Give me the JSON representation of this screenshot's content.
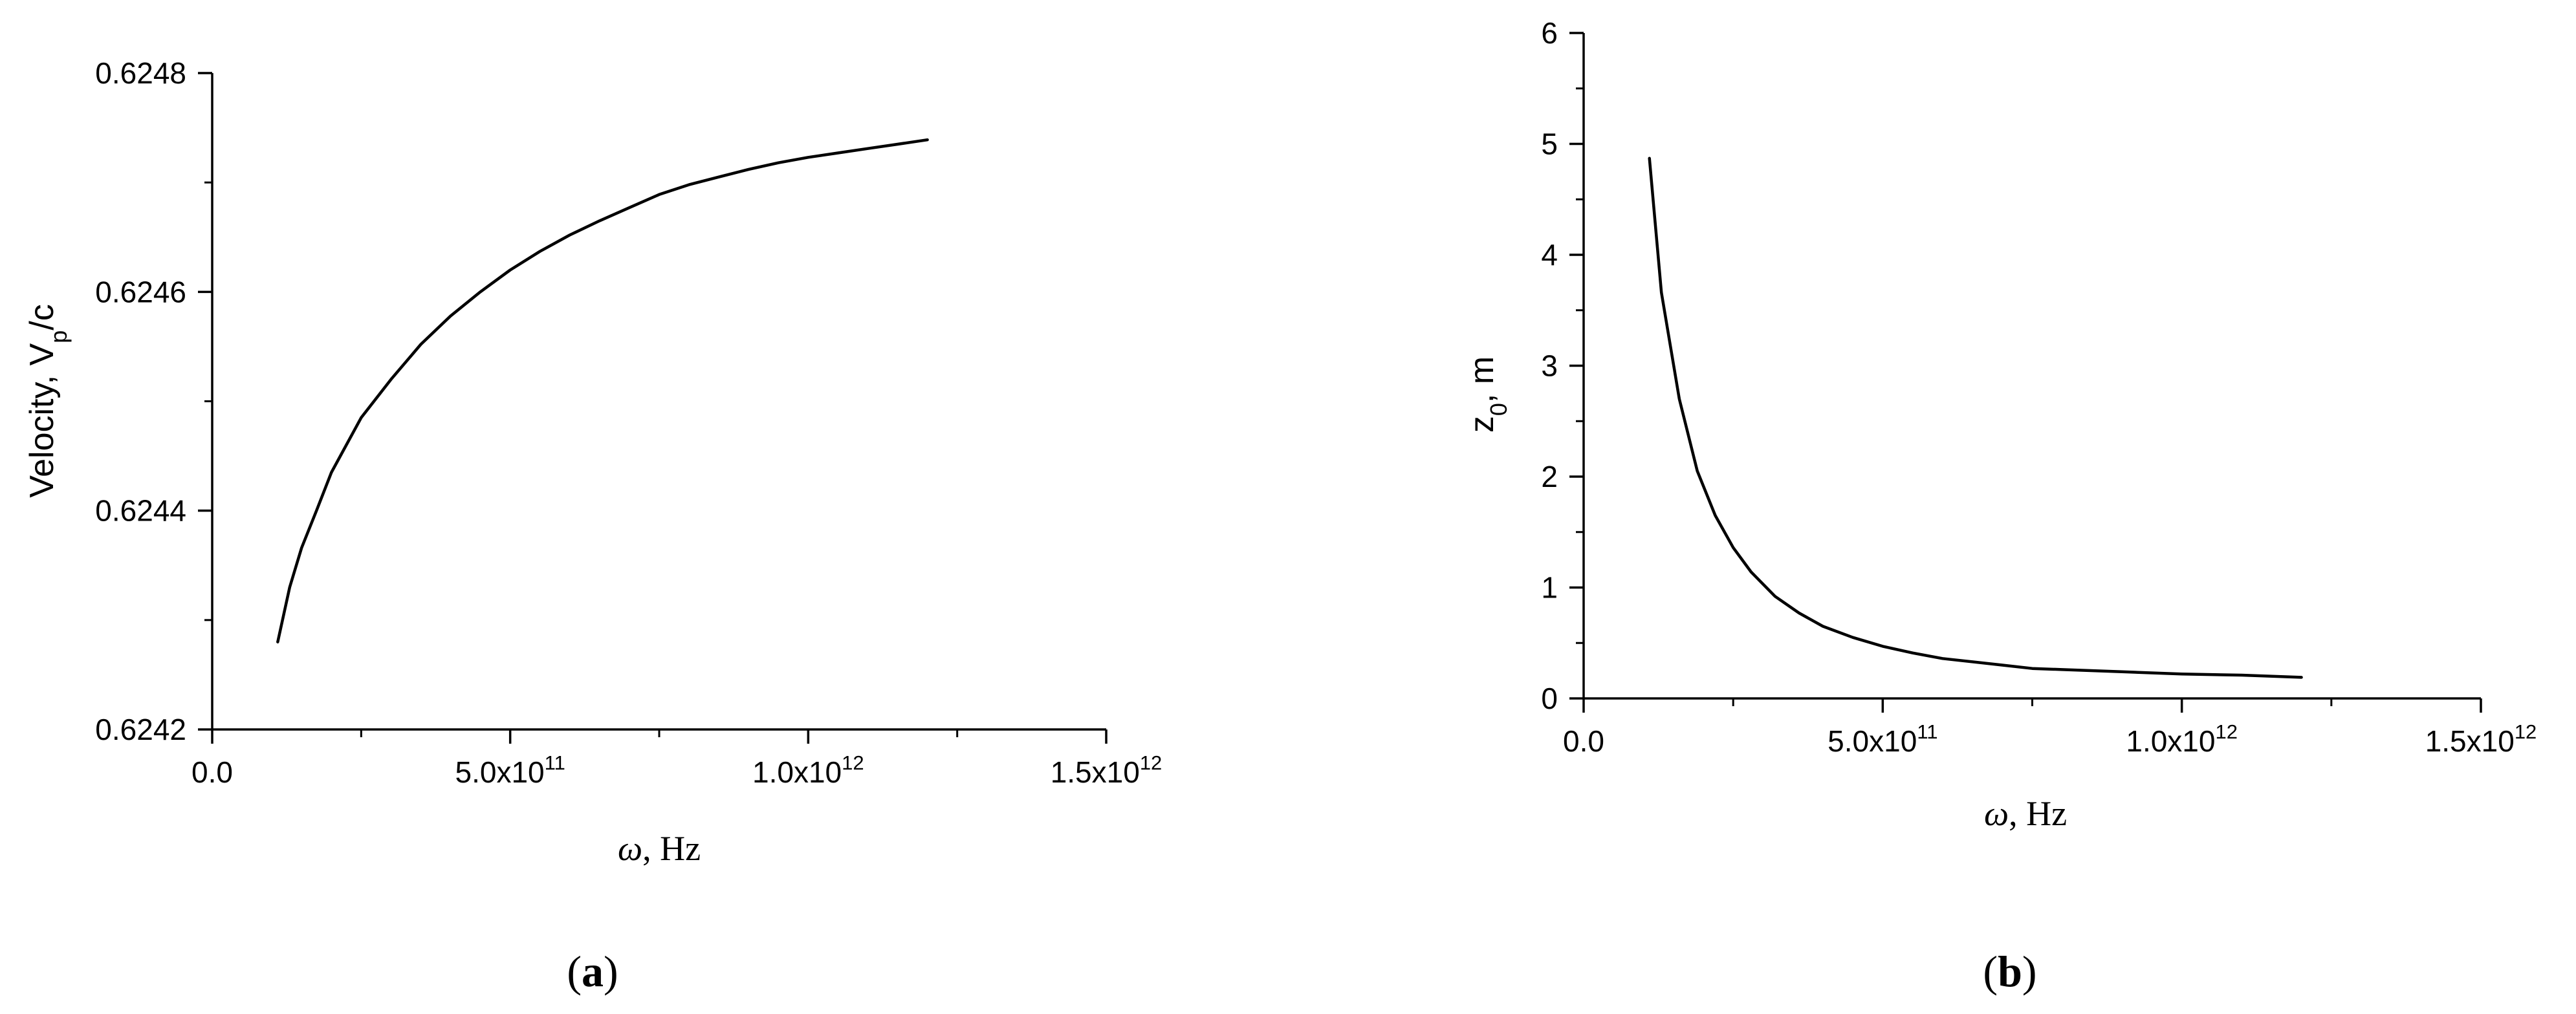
{
  "chart_data": [
    {
      "type": "line",
      "panel_label": "a",
      "xlabel_symbol": "ω",
      "xlabel_unit": ", Hz",
      "ylabel_main": "Velocity, V",
      "ylabel_sub": "p",
      "ylabel_tail": "/c",
      "xlim": [
        0,
        1500000000000.0
      ],
      "ylim": [
        0.6242,
        0.6248
      ],
      "xticks": [
        {
          "mant": "0.0",
          "exp": ""
        },
        {
          "mant": "5.0x10",
          "exp": "11"
        },
        {
          "mant": "1.0x10",
          "exp": "12"
        },
        {
          "mant": "1.5x10",
          "exp": "12"
        }
      ],
      "xtick_values": [
        0,
        500000000000.0,
        1000000000000.0,
        1500000000000.0
      ],
      "yticks": [
        "0.6242",
        "0.6244",
        "0.6246",
        "0.6248"
      ],
      "ytick_values": [
        0.6242,
        0.6244,
        0.6246,
        0.6248
      ],
      "grid": false,
      "x": [
        110000000000.0,
        130000000000.0,
        150000000000.0,
        175000000000.0,
        200000000000.0,
        250000000000.0,
        300000000000.0,
        350000000000.0,
        400000000000.0,
        450000000000.0,
        500000000000.0,
        550000000000.0,
        600000000000.0,
        650000000000.0,
        700000000000.0,
        750000000000.0,
        800000000000.0,
        850000000000.0,
        900000000000.0,
        950000000000.0,
        1000000000000.0,
        1050000000000.0,
        1100000000000.0,
        1150000000000.0,
        1200000000000.0
      ],
      "y": [
        0.62428,
        0.62433,
        0.624366,
        0.6244,
        0.624435,
        0.624485,
        0.62452,
        0.624552,
        0.624578,
        0.6246,
        0.62462,
        0.624637,
        0.624652,
        0.624665,
        0.624677,
        0.624689,
        0.624698,
        0.624705,
        0.624712,
        0.624718,
        0.624723,
        0.624727,
        0.624731,
        0.624735,
        0.624739
      ]
    },
    {
      "type": "line",
      "panel_label": "b",
      "xlabel_symbol": "ω",
      "xlabel_unit": ", Hz",
      "ylabel_main": "z",
      "ylabel_sub": "0",
      "ylabel_tail": ", m",
      "xlim": [
        0,
        1500000000000.0
      ],
      "ylim": [
        0,
        6
      ],
      "xticks": [
        {
          "mant": "0.0",
          "exp": ""
        },
        {
          "mant": "5.0x10",
          "exp": "11"
        },
        {
          "mant": "1.0x10",
          "exp": "12"
        },
        {
          "mant": "1.5x10",
          "exp": "12"
        }
      ],
      "xtick_values": [
        0,
        500000000000.0,
        1000000000000.0,
        1500000000000.0
      ],
      "yticks": [
        "0",
        "1",
        "2",
        "3",
        "4",
        "5",
        "6"
      ],
      "ytick_values": [
        0,
        1,
        2,
        3,
        4,
        5,
        6
      ],
      "grid": false,
      "x": [
        110000000000.0,
        130000000000.0,
        160000000000.0,
        190000000000.0,
        220000000000.0,
        250000000000.0,
        280000000000.0,
        320000000000.0,
        360000000000.0,
        400000000000.0,
        450000000000.0,
        500000000000.0,
        550000000000.0,
        600000000000.0,
        700000000000.0,
        750000000000.0,
        800000000000.0,
        900000000000.0,
        1000000000000.0,
        1100000000000.0,
        1200000000000.0
      ],
      "y": [
        4.87,
        3.66,
        2.7,
        2.05,
        1.65,
        1.36,
        1.14,
        0.92,
        0.77,
        0.65,
        0.55,
        0.47,
        0.41,
        0.36,
        0.3,
        0.27,
        0.26,
        0.24,
        0.22,
        0.21,
        0.19
      ]
    }
  ]
}
